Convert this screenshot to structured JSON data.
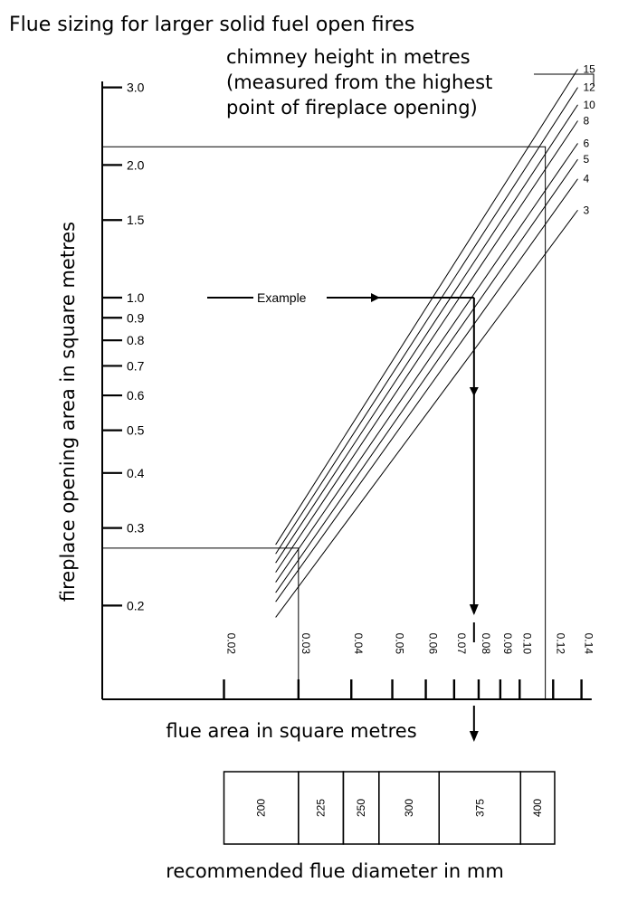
{
  "chart_data": {
    "type": "line",
    "title": "Flue sizing for larger solid fuel open fires",
    "xlabel": "flue area in square metres",
    "ylabel": "fireplace opening area in square metres",
    "legend_title": "chimney height in metres\n(measured from the highest\npoint of fireplace opening)",
    "x_scale": "log",
    "y_scale": "log",
    "xlim": [
      0.0155,
      0.15
    ],
    "ylim": [
      0.16,
      3.3
    ],
    "x_ticks": [
      0.02,
      0.03,
      0.04,
      0.05,
      0.06,
      0.07,
      0.08,
      0.09,
      0.1,
      0.12,
      0.14
    ],
    "x_tick_labels": [
      "0.02",
      "0.03",
      "0.04",
      "0.05",
      "0.06",
      "0.07",
      "0.08",
      "0.09",
      "0.10",
      "0.12",
      "0.14"
    ],
    "y_ticks": [
      0.2,
      0.3,
      0.4,
      0.5,
      0.6,
      0.7,
      0.8,
      0.9,
      1.0,
      1.5,
      2.0,
      3.0
    ],
    "y_tick_labels": [
      "0.2",
      "0.3",
      "0.4",
      "0.5",
      "0.6",
      "0.7",
      "0.8",
      "0.9",
      "1.0",
      "1.5",
      "2.0",
      "3.0"
    ],
    "x_start": 0.0265,
    "series": [
      {
        "name": "15",
        "y_start": 0.275,
        "x_end": 0.1372,
        "y_end": 3.3
      },
      {
        "name": "12",
        "y_start": 0.262,
        "x_end": 0.1372,
        "y_end": 3.0
      },
      {
        "name": "10",
        "y_start": 0.25,
        "x_end": 0.1372,
        "y_end": 2.74
      },
      {
        "name": "8",
        "y_start": 0.238,
        "x_end": 0.1372,
        "y_end": 2.52
      },
      {
        "name": "6",
        "y_start": 0.226,
        "x_end": 0.1372,
        "y_end": 2.24
      },
      {
        "name": "5",
        "y_start": 0.214,
        "x_end": 0.1372,
        "y_end": 2.06
      },
      {
        "name": "4",
        "y_start": 0.204,
        "x_end": 0.1372,
        "y_end": 1.86
      },
      {
        "name": "3",
        "y_start": 0.188,
        "x_end": 0.1372,
        "y_end": 1.58
      }
    ],
    "guide_lines": [
      {
        "y": 2.2,
        "x": 0.115
      },
      {
        "y": 0.27,
        "x": 0.03
      }
    ],
    "example": {
      "label": "Example",
      "opening_area": 1.0,
      "flue_area": 0.078
    },
    "diameter_table": {
      "label": "recommended flue diameter in mm",
      "bands": [
        {
          "label": "200",
          "from": 0.02,
          "to": 0.03
        },
        {
          "label": "225",
          "from": 0.03,
          "to": 0.0383
        },
        {
          "label": "250",
          "from": 0.0383,
          "to": 0.0465
        },
        {
          "label": "300",
          "from": 0.0465,
          "to": 0.0645
        },
        {
          "label": "375",
          "from": 0.0645,
          "to": 0.1005
        },
        {
          "label": "400",
          "from": 0.1005,
          "to": 0.121
        }
      ]
    }
  }
}
